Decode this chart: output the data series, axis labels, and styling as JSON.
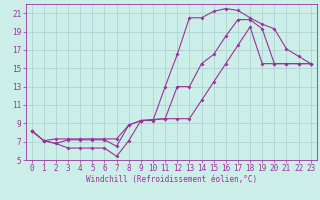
{
  "xlabel": "Windchill (Refroidissement éolien,°C)",
  "bg_color": "#cceee8",
  "grid_color": "#aacccc",
  "line_color": "#993399",
  "spine_color": "#993399",
  "xlim": [
    -0.5,
    23.5
  ],
  "ylim": [
    5,
    22
  ],
  "xticks": [
    0,
    1,
    2,
    3,
    4,
    5,
    6,
    7,
    8,
    9,
    10,
    11,
    12,
    13,
    14,
    15,
    16,
    17,
    18,
    19,
    20,
    21,
    22,
    23
  ],
  "yticks": [
    5,
    7,
    9,
    11,
    13,
    15,
    17,
    19,
    21
  ],
  "line1_x": [
    0,
    1,
    2,
    3,
    4,
    5,
    6,
    7,
    8,
    9,
    10,
    11,
    12,
    13,
    14,
    15,
    16,
    17,
    18,
    19,
    20,
    21,
    22,
    23
  ],
  "line1_y": [
    8.2,
    7.1,
    6.8,
    6.3,
    6.3,
    6.3,
    6.3,
    5.4,
    7.1,
    9.3,
    9.3,
    13.0,
    16.5,
    20.5,
    20.5,
    21.2,
    21.5,
    21.3,
    20.5,
    19.8,
    19.3,
    17.1,
    16.3,
    15.5
  ],
  "line2_x": [
    0,
    1,
    2,
    3,
    4,
    5,
    6,
    7,
    8,
    9,
    10,
    11,
    12,
    13,
    14,
    15,
    16,
    17,
    18,
    19,
    20,
    21,
    22,
    23
  ],
  "line2_y": [
    8.2,
    7.1,
    6.8,
    7.2,
    7.2,
    7.2,
    7.2,
    6.5,
    8.8,
    9.3,
    9.4,
    9.5,
    13.0,
    13.0,
    15.5,
    16.5,
    18.5,
    20.3,
    20.3,
    19.3,
    15.5,
    15.5,
    15.5,
    15.5
  ],
  "line3_x": [
    0,
    1,
    2,
    3,
    4,
    5,
    6,
    7,
    8,
    9,
    10,
    11,
    12,
    13,
    14,
    15,
    16,
    17,
    18,
    19,
    20,
    21,
    22,
    23
  ],
  "line3_y": [
    8.2,
    7.1,
    7.3,
    7.3,
    7.3,
    7.3,
    7.3,
    7.3,
    8.8,
    9.3,
    9.4,
    9.5,
    9.5,
    9.5,
    11.5,
    13.5,
    15.5,
    17.5,
    19.5,
    15.5,
    15.5,
    15.5,
    15.5,
    15.5
  ],
  "tick_fontsize": 5.5,
  "xlabel_fontsize": 5.5,
  "marker_size": 2.0,
  "line_width": 0.8
}
